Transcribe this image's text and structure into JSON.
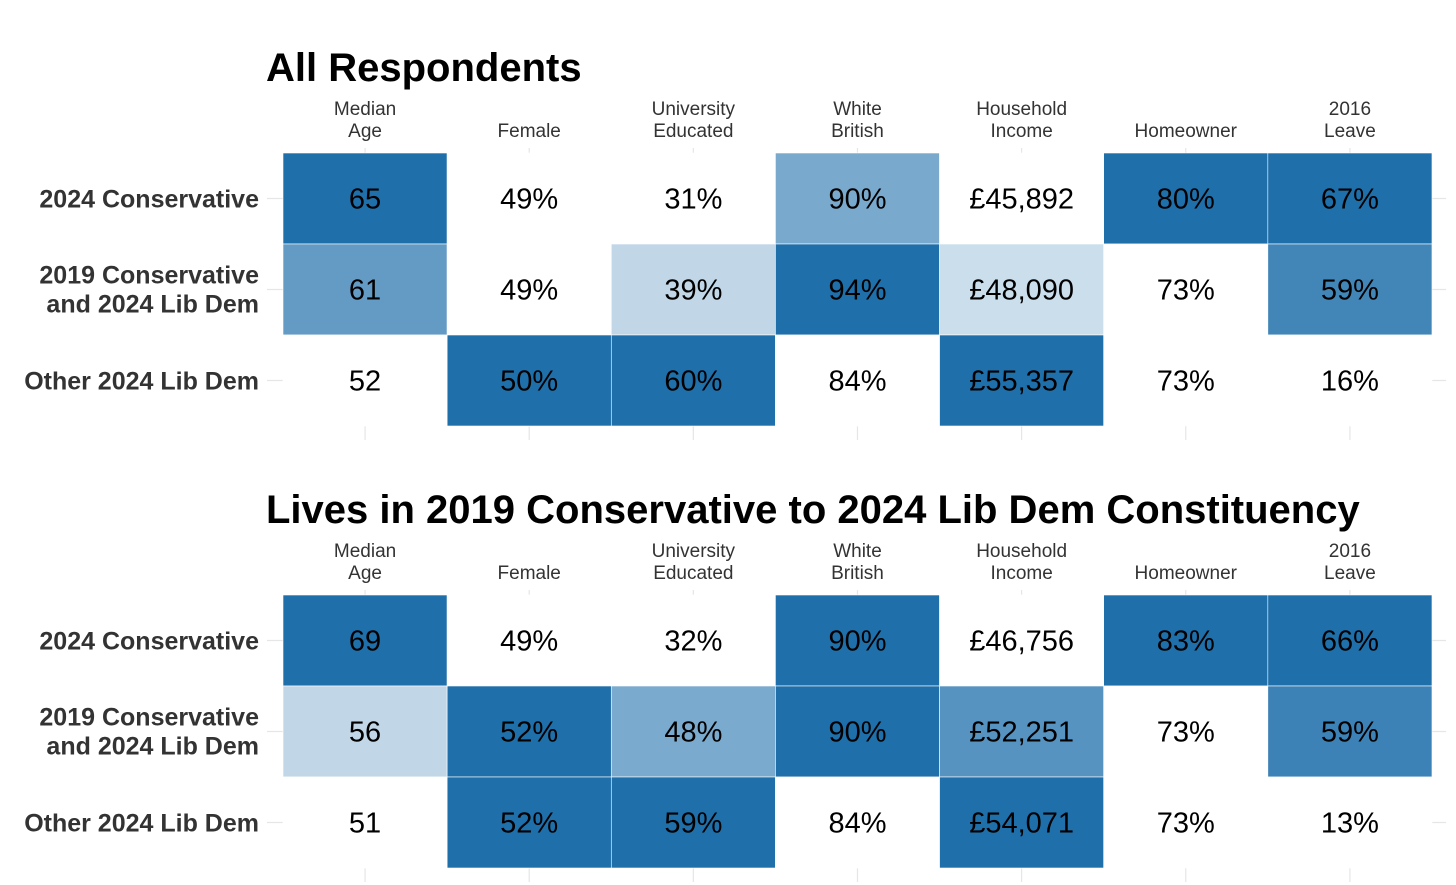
{
  "chart_data": [
    {
      "type": "heatmap",
      "title": "All Respondents",
      "columns": [
        {
          "line1": "Median",
          "line2": "Age"
        },
        {
          "line1": "",
          "line2": "Female"
        },
        {
          "line1": "University",
          "line2": "Educated"
        },
        {
          "line1": "White",
          "line2": "British"
        },
        {
          "line1": "Household",
          "line2": "Income"
        },
        {
          "line1": "",
          "line2": "Homeowner"
        },
        {
          "line1": "2016",
          "line2": "Leave"
        }
      ],
      "rows": [
        {
          "line1": "2024 Conservative",
          "line2": ""
        },
        {
          "line1": "2019 Conservative",
          "line2": "and 2024 Lib Dem"
        },
        {
          "line1": "Other 2024 Lib Dem",
          "line2": ""
        }
      ],
      "values": [
        [
          65,
          49,
          31,
          90,
          45892,
          80,
          67
        ],
        [
          61,
          49,
          39,
          94,
          48090,
          73,
          59
        ],
        [
          52,
          50,
          60,
          84,
          55357,
          73,
          16
        ]
      ],
      "labels": [
        [
          "65",
          "49%",
          "31%",
          "90%",
          "£45,892",
          "80%",
          "67%"
        ],
        [
          "61",
          "49%",
          "39%",
          "94%",
          "£48,090",
          "73%",
          "59%"
        ],
        [
          "52",
          "50%",
          "60%",
          "84%",
          "£55,357",
          "73%",
          "16%"
        ]
      ],
      "color_scale": {
        "low": "#ffffff",
        "high": "#1f6fab"
      }
    },
    {
      "type": "heatmap",
      "title": "Lives in 2019 Conservative to 2024 Lib Dem Constituency",
      "columns": [
        {
          "line1": "Median",
          "line2": "Age"
        },
        {
          "line1": "",
          "line2": "Female"
        },
        {
          "line1": "University",
          "line2": "Educated"
        },
        {
          "line1": "White",
          "line2": "British"
        },
        {
          "line1": "Household",
          "line2": "Income"
        },
        {
          "line1": "",
          "line2": "Homeowner"
        },
        {
          "line1": "2016",
          "line2": "Leave"
        }
      ],
      "rows": [
        {
          "line1": "2024 Conservative",
          "line2": ""
        },
        {
          "line1": "2019 Conservative",
          "line2": "and 2024 Lib Dem"
        },
        {
          "line1": "Other 2024 Lib Dem",
          "line2": ""
        }
      ],
      "values": [
        [
          69,
          49,
          32,
          90,
          46756,
          83,
          66
        ],
        [
          56,
          52,
          48,
          90,
          52251,
          73,
          59
        ],
        [
          51,
          52,
          59,
          84,
          54071,
          73,
          13
        ]
      ],
      "labels": [
        [
          "69",
          "49%",
          "32%",
          "90%",
          "£46,756",
          "83%",
          "66%"
        ],
        [
          "56",
          "52%",
          "48%",
          "90%",
          "£52,251",
          "73%",
          "59%"
        ],
        [
          "51",
          "52%",
          "59%",
          "84%",
          "£54,071",
          "73%",
          "13%"
        ]
      ],
      "color_scale": {
        "low": "#ffffff",
        "high": "#1f6fab"
      }
    }
  ]
}
